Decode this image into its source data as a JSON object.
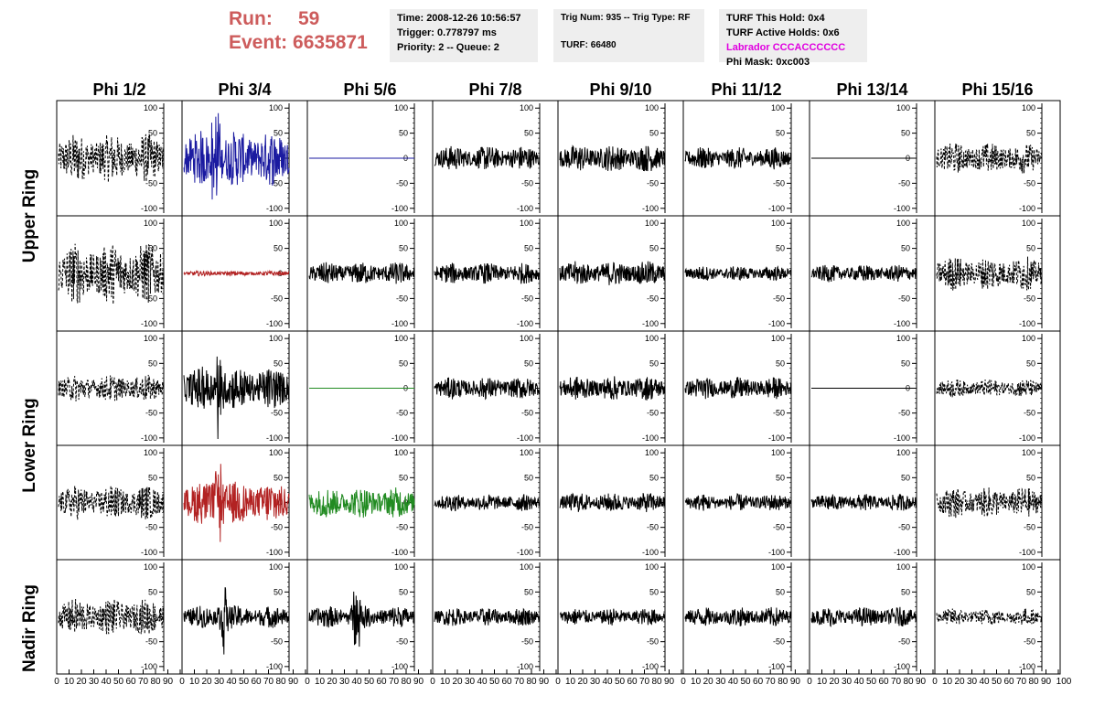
{
  "header": {
    "run_label": "Run:",
    "run_value": "59",
    "event_label": "Event:",
    "event_value": "6635871"
  },
  "info_time": {
    "time": "Time: 2008-12-26 10:56:57",
    "trigger": "Trigger: 0.778797 ms",
    "priority": "Priority: 2 -- Queue: 2"
  },
  "info_trig": {
    "trig": "Trig Num: 935 -- Trig Type: RF",
    "turf": "TURF: 66480"
  },
  "info_turf": {
    "this_hold": "TURF This Hold: 0x4",
    "active_holds": "TURF Active Holds: 0x6",
    "labrador": "Labrador CCCACCCCCC",
    "phi_mask": "Phi Mask: 0xc003"
  },
  "colors": {
    "header_red": "#cd5c5c",
    "info_bg": "#eeeeee",
    "labrador_magenta": "#e000e0",
    "trace_blue": "#1a1aa0",
    "trace_red": "#b22222",
    "trace_green": "#228b22",
    "trace_black": "#000000"
  },
  "chart_data": {
    "type": "line",
    "columns": [
      "Phi 1/2",
      "Phi 3/4",
      "Phi 5/6",
      "Phi 7/8",
      "Phi 9/10",
      "Phi 11/12",
      "Phi 13/14",
      "Phi 15/16"
    ],
    "rows": [
      "Upper Ring",
      "Lower Ring",
      "Nadir Ring"
    ],
    "x_ticks": [
      "0",
      "10",
      "20",
      "30",
      "40",
      "50",
      "60",
      "70",
      "80",
      "90",
      "100"
    ],
    "x_ticks_end": [
      "0",
      "10",
      "20",
      "30",
      "40",
      "50",
      "60",
      "70",
      "80",
      "90",
      "100"
    ],
    "xlim": [
      0,
      100
    ],
    "y_ticks": [
      "100",
      "50",
      "0",
      "-50",
      "-100"
    ],
    "ylim": [
      -115,
      115
    ],
    "panels": [
      [
        {
          "style": "dashed",
          "color": "#000000",
          "amp": 40,
          "spread": 0.9,
          "peak": 0,
          "flat": false
        },
        {
          "style": "solid",
          "color": "#1a1aa0",
          "amp": 45,
          "spread": 0.8,
          "peak": 110,
          "peakAt": 0.3,
          "flat": false
        },
        {
          "style": "solid",
          "color": "#1a1aa0",
          "amp": 0,
          "flat": true
        },
        {
          "style": "solid",
          "color": "#000000",
          "amp": 20,
          "spread": 1.0,
          "peak": 0,
          "flat": false
        },
        {
          "style": "solid",
          "color": "#000000",
          "amp": 22,
          "spread": 1.0,
          "peak": 0,
          "flat": false
        },
        {
          "style": "solid",
          "color": "#000000",
          "amp": 18,
          "spread": 1.0,
          "peak": 0,
          "flat": false
        },
        {
          "style": "solid",
          "color": "#000000",
          "amp": 0,
          "flat": true
        },
        {
          "style": "dashed",
          "color": "#000000",
          "amp": 25,
          "spread": 1.0,
          "peak": 0,
          "flat": false
        }
      ],
      [
        {
          "style": "dashed",
          "color": "#000000",
          "amp": 50,
          "spread": 0.9,
          "peak": 0,
          "flat": false
        },
        {
          "style": "solid",
          "color": "#b22222",
          "amp": 4,
          "spread": 1.0,
          "peak": 0,
          "flat": false
        },
        {
          "style": "solid",
          "color": "#000000",
          "amp": 18,
          "spread": 1.0,
          "peak": 0,
          "flat": false
        },
        {
          "style": "solid",
          "color": "#000000",
          "amp": 17,
          "spread": 1.0,
          "peak": 0,
          "flat": false
        },
        {
          "style": "solid",
          "color": "#000000",
          "amp": 20,
          "spread": 1.0,
          "peak": 0,
          "flat": false
        },
        {
          "style": "solid",
          "color": "#000000",
          "amp": 12,
          "spread": 1.0,
          "peak": 0,
          "flat": false
        },
        {
          "style": "solid",
          "color": "#000000",
          "amp": 14,
          "spread": 1.0,
          "peak": 0,
          "flat": false
        },
        {
          "style": "dashed",
          "color": "#000000",
          "amp": 28,
          "spread": 1.0,
          "peak": 0,
          "flat": false
        }
      ],
      [
        {
          "style": "dashed",
          "color": "#000000",
          "amp": 22,
          "spread": 1.0,
          "peak": 0,
          "flat": false
        },
        {
          "style": "solid",
          "color": "#000000",
          "amp": 35,
          "spread": 0.8,
          "peak": 80,
          "peakAt": 0.33,
          "flat": false
        },
        {
          "style": "solid",
          "color": "#228b22",
          "amp": 0,
          "flat": true
        },
        {
          "style": "solid",
          "color": "#000000",
          "amp": 18,
          "spread": 1.0,
          "peak": 0,
          "flat": false
        },
        {
          "style": "solid",
          "color": "#000000",
          "amp": 20,
          "spread": 1.0,
          "peak": 0,
          "flat": false
        },
        {
          "style": "solid",
          "color": "#000000",
          "amp": 18,
          "spread": 1.0,
          "peak": 0,
          "flat": false
        },
        {
          "style": "solid",
          "color": "#000000",
          "amp": 0,
          "flat": true
        },
        {
          "style": "dashed",
          "color": "#000000",
          "amp": 15,
          "spread": 1.0,
          "peak": 0,
          "flat": false
        }
      ],
      [
        {
          "style": "dashed",
          "color": "#000000",
          "amp": 28,
          "spread": 1.0,
          "peak": 0,
          "flat": false
        },
        {
          "style": "solid",
          "color": "#b22222",
          "amp": 35,
          "spread": 0.8,
          "peak": 95,
          "peakAt": 0.33,
          "flat": false
        },
        {
          "style": "solid",
          "color": "#228b22",
          "amp": 25,
          "spread": 0.9,
          "peak": 0,
          "flat": false
        },
        {
          "style": "solid",
          "color": "#000000",
          "amp": 14,
          "spread": 1.0,
          "peak": 0,
          "flat": false
        },
        {
          "style": "solid",
          "color": "#000000",
          "amp": 16,
          "spread": 1.0,
          "peak": 0,
          "flat": false
        },
        {
          "style": "solid",
          "color": "#000000",
          "amp": 14,
          "spread": 1.0,
          "peak": 0,
          "flat": false
        },
        {
          "style": "solid",
          "color": "#000000",
          "amp": 14,
          "spread": 1.0,
          "peak": 0,
          "flat": false
        },
        {
          "style": "dashed",
          "color": "#000000",
          "amp": 25,
          "spread": 1.0,
          "peak": 0,
          "flat": false
        }
      ],
      [
        {
          "style": "dashed",
          "color": "#000000",
          "amp": 30,
          "spread": 1.0,
          "peak": 0,
          "flat": false
        },
        {
          "style": "solid",
          "color": "#000000",
          "amp": 18,
          "spread": 0.9,
          "peak": 70,
          "peakAt": 0.38,
          "flat": false
        },
        {
          "style": "solid",
          "color": "#000000",
          "amp": 18,
          "spread": 1.0,
          "peak": 60,
          "peakAt": 0.45,
          "flat": false
        },
        {
          "style": "solid",
          "color": "#000000",
          "amp": 15,
          "spread": 1.0,
          "peak": 0,
          "flat": false
        },
        {
          "style": "solid",
          "color": "#000000",
          "amp": 14,
          "spread": 1.0,
          "peak": 0,
          "flat": false
        },
        {
          "style": "solid",
          "color": "#000000",
          "amp": 16,
          "spread": 1.0,
          "peak": 0,
          "flat": false
        },
        {
          "style": "solid",
          "color": "#000000",
          "amp": 16,
          "spread": 1.0,
          "peak": 0,
          "flat": false
        },
        {
          "style": "dashed",
          "color": "#000000",
          "amp": 14,
          "spread": 1.0,
          "peak": 0,
          "flat": false
        }
      ]
    ]
  }
}
